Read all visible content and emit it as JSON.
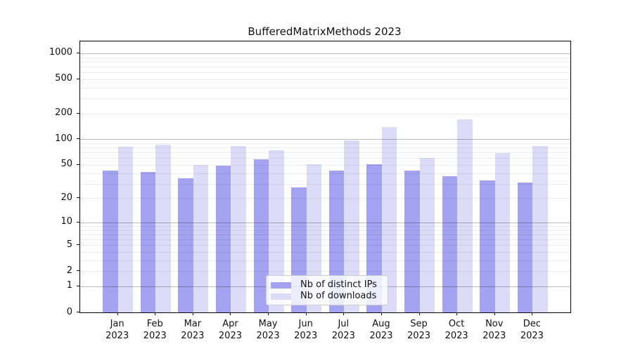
{
  "title": "BufferedMatrixMethods 2023",
  "chart_data": {
    "type": "bar",
    "title": "BufferedMatrixMethods 2023",
    "categories": [
      "Jan",
      "Feb",
      "Mar",
      "Apr",
      "May",
      "Jun",
      "Jul",
      "Aug",
      "Sep",
      "Oct",
      "Nov",
      "Dec"
    ],
    "category_year": "2023",
    "series": [
      {
        "name": "Nb of distinct IPs",
        "color": "#a3a3f2",
        "values": [
          43,
          41,
          35,
          49,
          58,
          27,
          43,
          51,
          43,
          37,
          33,
          31
        ]
      },
      {
        "name": "Nb of downloads",
        "color": "#dcdcf8",
        "values": [
          82,
          87,
          50,
          84,
          75,
          51,
          98,
          140,
          60,
          170,
          69,
          83
        ]
      }
    ],
    "y_axis": {
      "scale": "log10(1+x)",
      "tick_values": [
        0,
        1,
        2,
        5,
        10,
        20,
        50,
        100,
        200,
        500,
        1000
      ],
      "tick_labels": [
        "0",
        "1",
        "2",
        "5",
        "10",
        "20",
        "50",
        "100",
        "200",
        "500",
        "1000"
      ],
      "major_grid_values": [
        1,
        10,
        100,
        1000
      ],
      "top_value": 1372
    },
    "xlabel": "",
    "ylabel": "",
    "grid": true,
    "grid_over_bars": true,
    "legend_position": "lower center"
  },
  "colors": {
    "background": "#ffffff",
    "spine": "#000000",
    "major_grid": "rgba(0,0,0,0.27)",
    "minor_grid": "rgba(0,0,0,0.075)",
    "text": "#111111",
    "legend_border": "#cccccc"
  }
}
